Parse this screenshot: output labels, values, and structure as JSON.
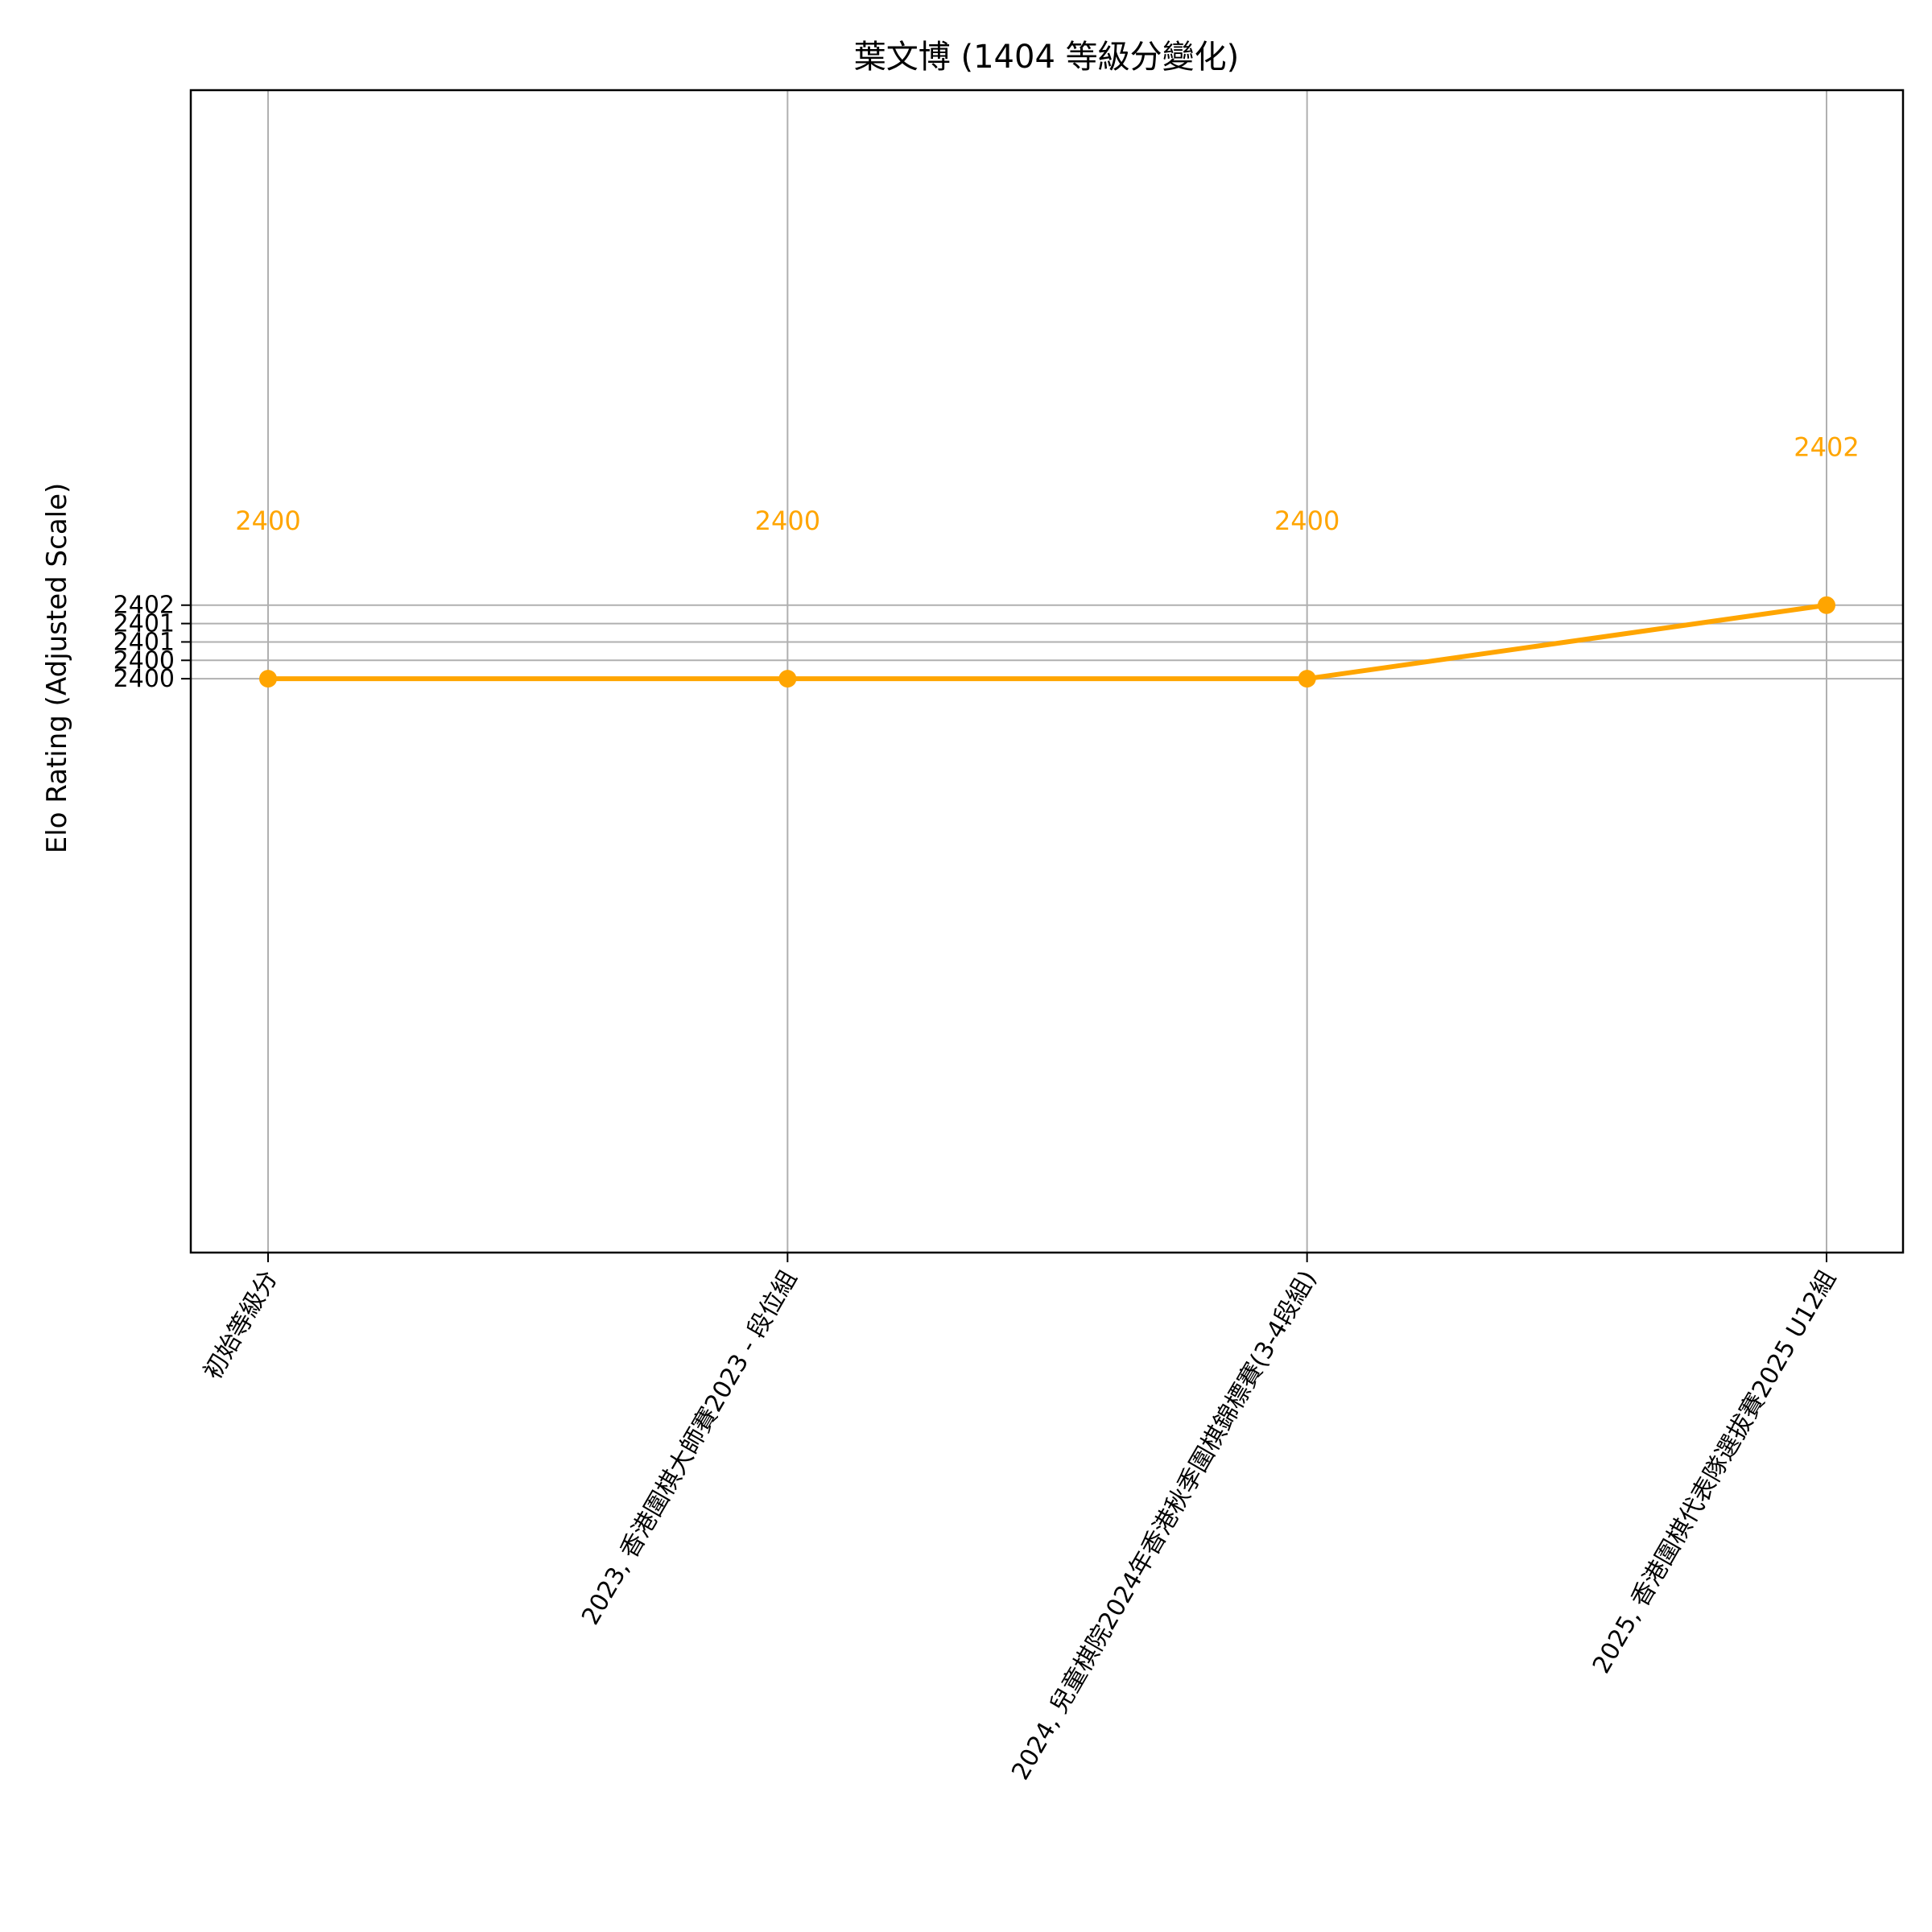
{
  "chart_data": {
    "type": "line",
    "title": "葉文博 (1404 等級分變化)",
    "xlabel": "",
    "ylabel": "Elo Rating (Adjusted Scale)",
    "categories": [
      "初始等級分",
      "2023, 香港圍棋大師賽2023 - 段位組",
      "2024, 兒童棋院2024年香港秋季圍棋錦標賽(3-4段組)",
      "2025, 香港圍棋代表隊選拔賽2025 U12組"
    ],
    "series": [
      {
        "values": [
          2400,
          2400,
          2400,
          2402
        ],
        "color": "#ffa500"
      }
    ],
    "data_labels": [
      "2400",
      "2400",
      "2400",
      "2402"
    ],
    "yticks": [
      2400,
      2400.5,
      2401,
      2401.5,
      2402
    ],
    "ytick_labels": [
      "2400",
      "2400",
      "2401",
      "2401",
      "2402"
    ],
    "ylim": [
      2384.4,
      2416.0
    ],
    "grid": true,
    "legend": "none"
  }
}
